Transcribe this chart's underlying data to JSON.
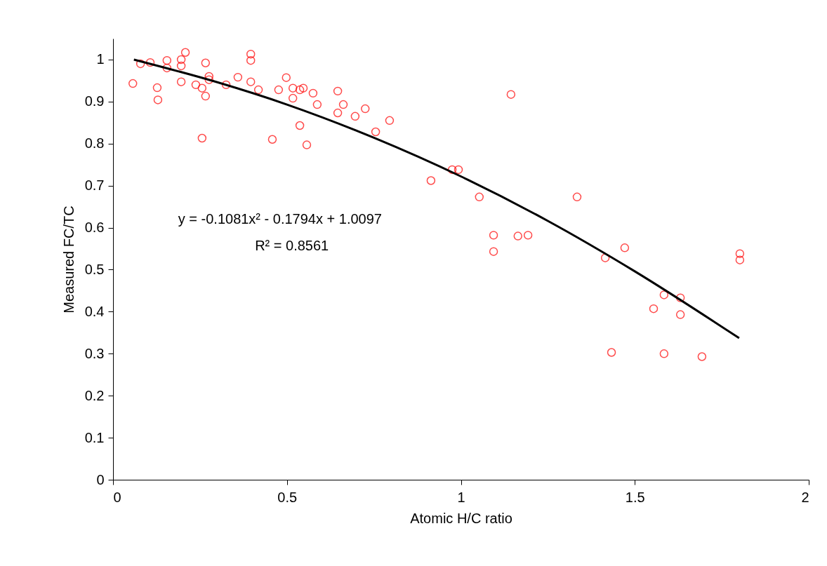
{
  "chart_data": {
    "type": "scatter",
    "xlabel": "Atomic H/C ratio",
    "ylabel": "Measured FC/TC",
    "xlim": [
      0,
      2
    ],
    "xticks": [
      0,
      0.5,
      1,
      1.5,
      2
    ],
    "ylim": [
      0,
      1.05
    ],
    "yticks": [
      0,
      0.1,
      0.2,
      0.3,
      0.4,
      0.5,
      0.6,
      0.7,
      0.8,
      0.9,
      1
    ],
    "grid": false,
    "annotations": [
      "y = -0.1081x² - 0.1794x + 1.0097",
      "R² = 0.8561"
    ],
    "series": [
      {
        "marker": "circle",
        "color": "#ff0000",
        "x": [
          0.057,
          0.079,
          0.107,
          0.127,
          0.155,
          0.155,
          0.129,
          0.196,
          0.196,
          0.208,
          0.196,
          0.238,
          0.256,
          0.266,
          0.266,
          0.256,
          0.276,
          0.276,
          0.325,
          0.359,
          0.396,
          0.396,
          0.396,
          0.418,
          0.458,
          0.476,
          0.498,
          0.517,
          0.517,
          0.537,
          0.547,
          0.537,
          0.557,
          0.575,
          0.587,
          0.646,
          0.646,
          0.662,
          0.696,
          0.725,
          0.755,
          0.795,
          0.914,
          0.975,
          0.993,
          1.053,
          1.094,
          1.094,
          1.144,
          1.164,
          1.193,
          1.334,
          1.415,
          1.433,
          1.471,
          1.554,
          1.584,
          1.584,
          1.631,
          1.631,
          1.693,
          1.802,
          1.802
        ],
        "values": [
          0.943,
          0.99,
          0.993,
          0.933,
          0.998,
          0.98,
          0.904,
          1.0,
          0.985,
          1.017,
          0.947,
          0.94,
          0.932,
          0.992,
          0.913,
          0.813,
          0.96,
          0.952,
          0.94,
          0.958,
          1.013,
          0.998,
          0.947,
          0.928,
          0.81,
          0.928,
          0.957,
          0.932,
          0.908,
          0.928,
          0.932,
          0.843,
          0.797,
          0.92,
          0.893,
          0.925,
          0.873,
          0.893,
          0.865,
          0.883,
          0.828,
          0.855,
          0.712,
          0.738,
          0.738,
          0.673,
          0.582,
          0.543,
          0.917,
          0.58,
          0.582,
          0.673,
          0.528,
          0.303,
          0.552,
          0.407,
          0.44,
          0.3,
          0.433,
          0.393,
          0.293,
          0.538,
          0.523
        ]
      },
      {
        "type": "line",
        "marker": "none",
        "color": "#000000",
        "x": [
          0.06,
          0.3,
          0.5,
          0.75,
          1.0,
          1.25,
          1.5,
          1.8
        ],
        "values": [
          1.0,
          0.946,
          0.893,
          0.814,
          0.722,
          0.616,
          0.496,
          0.337
        ]
      }
    ]
  }
}
